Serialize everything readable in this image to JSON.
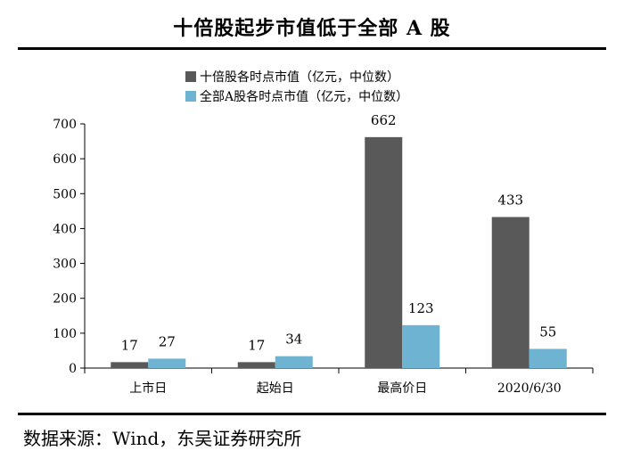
{
  "header": {
    "title": "十倍股起步市值低于全部 A 股"
  },
  "footer": {
    "source": "数据来源：Wind，东吴证券研究所"
  },
  "chart_data": {
    "type": "bar",
    "categories": [
      "上市日",
      "起始日",
      "最高价日",
      "2020/6/30"
    ],
    "series": [
      {
        "name": "十倍股各时点市值（亿元，中位数）",
        "values": [
          17,
          17,
          662,
          433
        ],
        "color": "#595959"
      },
      {
        "name": "全部A股各时点市值（亿元，中位数）",
        "values": [
          27,
          34,
          123,
          55
        ],
        "color": "#6fb3d2"
      }
    ],
    "yticks": [
      0,
      100,
      200,
      300,
      400,
      500,
      600,
      700
    ],
    "ylim": [
      0,
      700
    ],
    "legend": "top",
    "grid": false
  }
}
